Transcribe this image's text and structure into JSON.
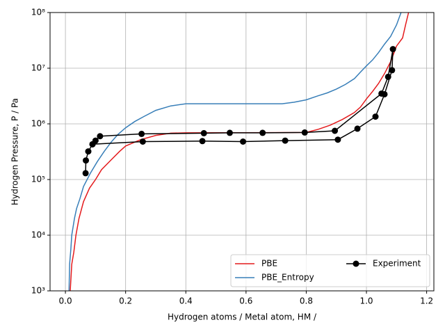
{
  "chart_data": {
    "type": "line",
    "xlabel": "Hydrogen atoms / Metal atom, HM /",
    "ylabel": "Hydrogen Pressure, P / Pa",
    "xlim": [
      -0.051,
      1.224
    ],
    "ylim": [
      1000,
      100000000
    ],
    "yscale": "log",
    "grid": true,
    "legend": "lower right",
    "xticks": [
      {
        "value": 0,
        "label": "0.0"
      },
      0.2,
      0.4,
      0.6,
      0.8,
      {
        "value": 1,
        "label": "1.0"
      },
      1.2
    ],
    "yticks": [
      {
        "value": 1000,
        "label": "10³"
      },
      {
        "value": 10000,
        "label": "10⁴"
      },
      {
        "value": 100000,
        "label": "10⁵"
      },
      {
        "value": 1000000,
        "label": "10⁶"
      },
      {
        "value": 10000000,
        "label": "10⁷"
      },
      {
        "value": 100000000,
        "label": "10⁸"
      }
    ],
    "series": [
      {
        "name": "PBE",
        "color": "#e41a1c",
        "x": [
          0.016,
          0.021,
          0.028,
          0.035,
          0.045,
          0.06,
          0.08,
          0.1,
          0.12,
          0.15,
          0.18,
          0.2,
          0.25,
          0.3,
          0.35,
          0.4,
          0.8,
          0.84,
          0.88,
          0.92,
          0.96,
          0.98,
          1.0,
          1.02,
          1.04,
          1.06,
          1.08,
          1.1,
          1.12,
          1.13,
          1.14
        ],
        "y": [
          1000,
          3000,
          5000,
          10000,
          20000,
          40000,
          70000,
          100000,
          150000,
          220000,
          320000,
          400000,
          520000,
          620000,
          680000,
          690000,
          700000,
          800000,
          950000,
          1200000,
          1600000,
          2000000,
          2800000,
          3800000,
          5300000,
          8000000,
          13000000,
          25000000,
          35000000,
          60000000,
          100000000
        ]
      },
      {
        "name": "PBE_Entropy",
        "color": "#377eb8",
        "x": [
          0.012,
          0.014,
          0.018,
          0.021,
          0.03,
          0.037,
          0.048,
          0.06,
          0.083,
          0.106,
          0.129,
          0.152,
          0.175,
          0.2,
          0.23,
          0.26,
          0.3,
          0.35,
          0.4,
          0.72,
          0.76,
          0.8,
          0.84,
          0.87,
          0.9,
          0.93,
          0.96,
          0.98,
          1.0,
          1.02,
          1.04,
          1.06,
          1.08,
          1.1,
          1.115
        ],
        "y": [
          1000,
          3000,
          5600,
          10000,
          20000,
          30000,
          45000,
          75000,
          130000,
          210000,
          320000,
          470000,
          650000,
          850000,
          1100000,
          1350000,
          1750000,
          2100000,
          2300000,
          2300000,
          2450000,
          2700000,
          3200000,
          3600000,
          4200000,
          5100000,
          6500000,
          8500000,
          11000000,
          14000000,
          19000000,
          27000000,
          37000000,
          60000000,
          100000000
        ]
      },
      {
        "name": "Experiment",
        "color": "#000000",
        "marker": "o",
        "x": [
          0.067,
          0.068,
          0.076,
          0.09,
          0.1,
          0.115,
          0.253,
          0.46,
          0.546,
          0.655,
          0.795,
          0.895,
          1.05,
          1.072,
          1.088,
          1.085,
          1.06,
          1.03,
          0.97,
          0.905,
          0.73,
          0.59,
          0.455,
          0.257,
          0.09
        ],
        "y": [
          130000,
          220000,
          320000,
          430000,
          500000,
          600000,
          660000,
          680000,
          690000,
          690000,
          700000,
          750000,
          3500000,
          7000000,
          22000000,
          9200000,
          3400000,
          1350000,
          820000,
          520000,
          500000,
          480000,
          490000,
          480000,
          430000
        ]
      }
    ]
  }
}
